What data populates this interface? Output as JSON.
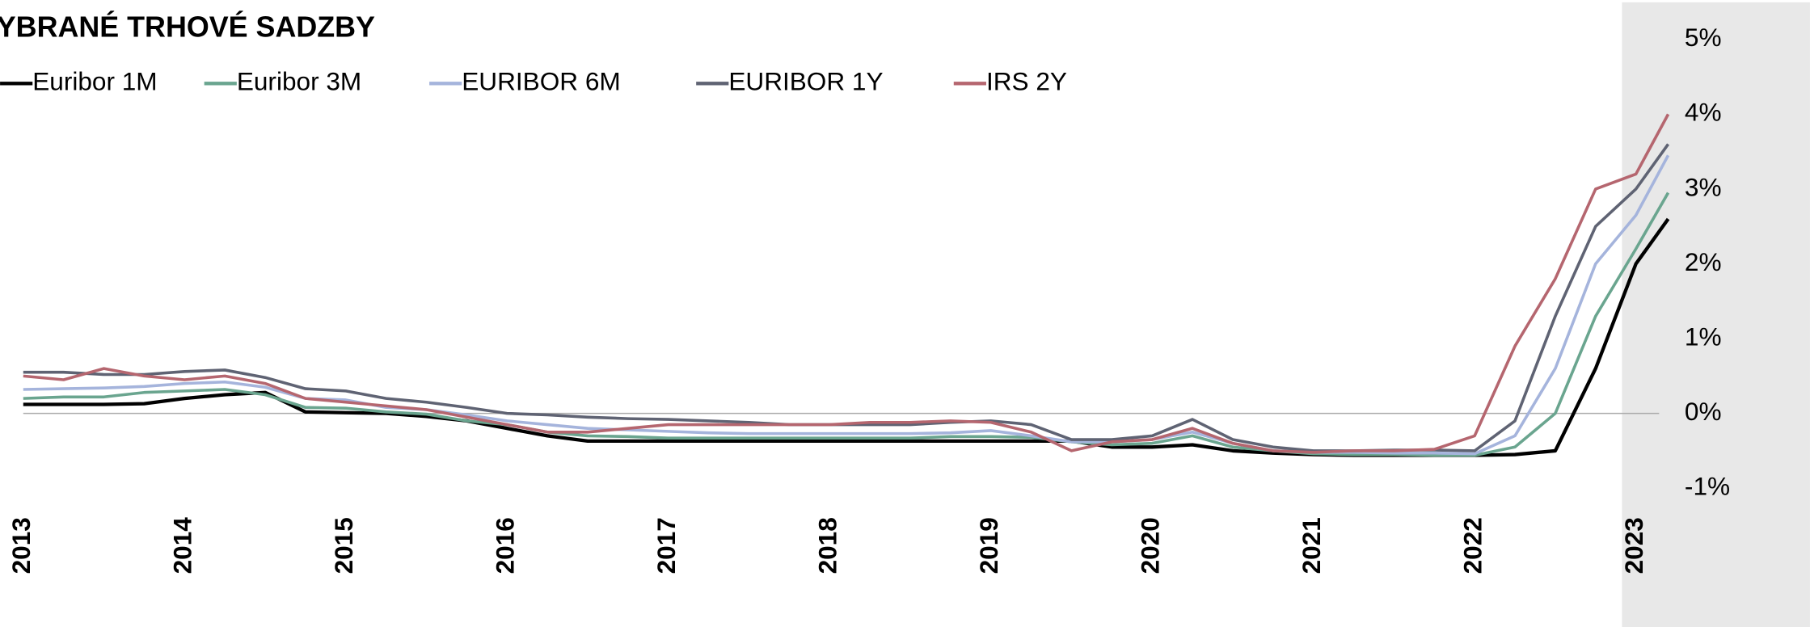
{
  "chart_data": {
    "type": "line",
    "title": "YBRANÉ TRHOVÉ SADZBY",
    "x": [
      2013,
      2013.25,
      2013.5,
      2013.75,
      2014,
      2014.25,
      2014.5,
      2014.75,
      2015,
      2015.25,
      2015.5,
      2015.75,
      2016,
      2016.25,
      2016.5,
      2016.75,
      2017,
      2017.25,
      2017.5,
      2017.75,
      2018,
      2018.25,
      2018.5,
      2018.75,
      2019,
      2019.25,
      2019.5,
      2019.75,
      2020,
      2020.25,
      2020.5,
      2020.75,
      2021,
      2021.25,
      2021.5,
      2021.75,
      2022,
      2022.25,
      2022.5,
      2022.75,
      2023,
      2023.2
    ],
    "series": [
      {
        "name": "Euribor 1M",
        "color": "#000000",
        "values": [
          0.12,
          0.12,
          0.12,
          0.13,
          0.2,
          0.25,
          0.28,
          0.02,
          0.01,
          0,
          -0.04,
          -0.1,
          -0.2,
          -0.3,
          -0.37,
          -0.37,
          -0.37,
          -0.37,
          -0.37,
          -0.37,
          -0.37,
          -0.37,
          -0.37,
          -0.37,
          -0.37,
          -0.37,
          -0.37,
          -0.45,
          -0.45,
          -0.42,
          -0.5,
          -0.53,
          -0.55,
          -0.56,
          -0.56,
          -0.56,
          -0.56,
          -0.55,
          -0.5,
          0.6,
          2.0,
          2.6
        ]
      },
      {
        "name": "Euribor 3M",
        "color": "#6aa58f",
        "values": [
          0.2,
          0.22,
          0.22,
          0.28,
          0.3,
          0.32,
          0.25,
          0.08,
          0.07,
          0.02,
          -0.01,
          -0.1,
          -0.15,
          -0.25,
          -0.3,
          -0.31,
          -0.33,
          -0.33,
          -0.33,
          -0.33,
          -0.33,
          -0.33,
          -0.33,
          -0.31,
          -0.31,
          -0.32,
          -0.38,
          -0.42,
          -0.4,
          -0.3,
          -0.45,
          -0.5,
          -0.54,
          -0.55,
          -0.55,
          -0.56,
          -0.56,
          -0.45,
          0.0,
          1.3,
          2.2,
          2.95
        ]
      },
      {
        "name": "EURIBOR 6M",
        "color": "#a5b4dc",
        "values": [
          0.32,
          0.33,
          0.34,
          0.36,
          0.4,
          0.42,
          0.35,
          0.2,
          0.18,
          0.08,
          0.05,
          -0.02,
          -0.1,
          -0.15,
          -0.2,
          -0.22,
          -0.24,
          -0.26,
          -0.27,
          -0.27,
          -0.27,
          -0.27,
          -0.27,
          -0.26,
          -0.23,
          -0.3,
          -0.38,
          -0.38,
          -0.35,
          -0.25,
          -0.4,
          -0.5,
          -0.52,
          -0.52,
          -0.53,
          -0.53,
          -0.54,
          -0.3,
          0.6,
          2.0,
          2.65,
          3.45
        ]
      },
      {
        "name": "EURIBOR 1Y",
        "color": "#5f6373",
        "values": [
          0.55,
          0.55,
          0.52,
          0.52,
          0.56,
          0.58,
          0.48,
          0.33,
          0.3,
          0.2,
          0.15,
          0.08,
          0.0,
          -0.02,
          -0.05,
          -0.07,
          -0.08,
          -0.1,
          -0.12,
          -0.15,
          -0.15,
          -0.15,
          -0.15,
          -0.12,
          -0.1,
          -0.15,
          -0.35,
          -0.35,
          -0.3,
          -0.08,
          -0.35,
          -0.45,
          -0.5,
          -0.5,
          -0.49,
          -0.49,
          -0.5,
          -0.1,
          1.3,
          2.5,
          3.0,
          3.6
        ]
      },
      {
        "name": "IRS 2Y",
        "color": "#b5666f",
        "values": [
          0.5,
          0.45,
          0.6,
          0.5,
          0.45,
          0.5,
          0.4,
          0.2,
          0.15,
          0.1,
          0.05,
          -0.05,
          -0.15,
          -0.25,
          -0.25,
          -0.2,
          -0.15,
          -0.15,
          -0.15,
          -0.15,
          -0.15,
          -0.12,
          -0.12,
          -0.1,
          -0.12,
          -0.25,
          -0.5,
          -0.38,
          -0.35,
          -0.2,
          -0.4,
          -0.5,
          -0.52,
          -0.5,
          -0.5,
          -0.48,
          -0.3,
          0.9,
          1.8,
          3.0,
          3.2,
          4.0
        ]
      }
    ],
    "xlim": [
      2013,
      2023.2
    ],
    "xticks": [
      2013,
      2014,
      2015,
      2016,
      2017,
      2018,
      2019,
      2020,
      2021,
      2022,
      2023
    ],
    "ylim": [
      -1,
      5
    ],
    "yticks": [
      {
        "value": 5,
        "label": "5%"
      },
      {
        "value": 4,
        "label": "4%"
      },
      {
        "value": 3,
        "label": "3%"
      },
      {
        "value": 2,
        "label": "2%"
      },
      {
        "value": 1,
        "label": "1%"
      },
      {
        "value": 0,
        "label": "0%"
      },
      {
        "value": -1,
        "label": "-1%"
      }
    ],
    "y_axis_side": "right",
    "legend": "top"
  }
}
